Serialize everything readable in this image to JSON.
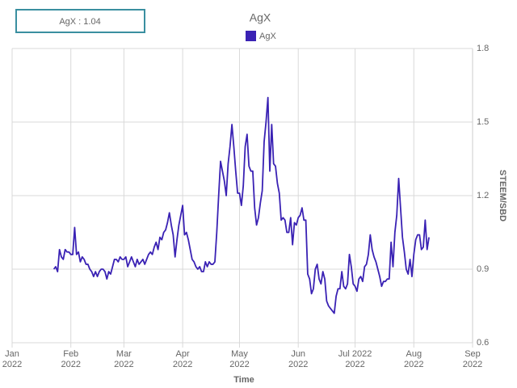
{
  "chart_data": {
    "type": "line",
    "title": "AgX",
    "tooltip": "AgX : 1.04",
    "xlabel": "Time",
    "ylabel": "STEEM/SBD",
    "xlim": [
      "2022-01-01",
      "2022-09-01"
    ],
    "xticks": [
      {
        "value": "2022-01-01",
        "label": [
          "Jan",
          "2022"
        ]
      },
      {
        "value": "2022-02-01",
        "label": [
          "Feb",
          "2022"
        ]
      },
      {
        "value": "2022-03-01",
        "label": [
          "Mar",
          "2022"
        ]
      },
      {
        "value": "2022-04-01",
        "label": [
          "Apr",
          "2022"
        ]
      },
      {
        "value": "2022-05-01",
        "label": [
          "May",
          "2022"
        ]
      },
      {
        "value": "2022-06-01",
        "label": [
          "Jun",
          "2022"
        ]
      },
      {
        "value": "2022-07-01",
        "label": [
          "Jul 2022",
          "2022"
        ]
      },
      {
        "value": "2022-08-01",
        "label": [
          "Aug",
          "2022"
        ]
      },
      {
        "value": "2022-09-01",
        "label": [
          "Sep",
          "2022"
        ]
      }
    ],
    "ylim": [
      0.6,
      1.8
    ],
    "yticks": [
      0.6,
      0.9,
      1.2,
      1.5,
      1.8
    ],
    "grid": true,
    "legend": "top",
    "x": [
      "2022-01-23",
      "2022-01-24",
      "2022-01-25",
      "2022-01-26",
      "2022-01-27",
      "2022-01-28",
      "2022-01-29",
      "2022-01-30",
      "2022-01-31",
      "2022-02-01",
      "2022-02-02",
      "2022-02-03",
      "2022-02-04",
      "2022-02-05",
      "2022-02-06",
      "2022-02-07",
      "2022-02-08",
      "2022-02-09",
      "2022-02-10",
      "2022-02-11",
      "2022-02-12",
      "2022-02-13",
      "2022-02-14",
      "2022-02-15",
      "2022-02-16",
      "2022-02-17",
      "2022-02-18",
      "2022-02-19",
      "2022-02-20",
      "2022-02-21",
      "2022-02-22",
      "2022-02-23",
      "2022-02-24",
      "2022-02-25",
      "2022-02-26",
      "2022-02-27",
      "2022-02-28",
      "2022-03-01",
      "2022-03-02",
      "2022-03-03",
      "2022-03-04",
      "2022-03-05",
      "2022-03-06",
      "2022-03-07",
      "2022-03-08",
      "2022-03-09",
      "2022-03-10",
      "2022-03-11",
      "2022-03-12",
      "2022-03-13",
      "2022-03-14",
      "2022-03-15",
      "2022-03-16",
      "2022-03-17",
      "2022-03-18",
      "2022-03-19",
      "2022-03-20",
      "2022-03-21",
      "2022-03-22",
      "2022-03-23",
      "2022-03-24",
      "2022-03-25",
      "2022-03-26",
      "2022-03-27",
      "2022-03-28",
      "2022-03-29",
      "2022-03-30",
      "2022-03-31",
      "2022-04-01",
      "2022-04-02",
      "2022-04-03",
      "2022-04-04",
      "2022-04-05",
      "2022-04-06",
      "2022-04-07",
      "2022-04-08",
      "2022-04-09",
      "2022-04-10",
      "2022-04-11",
      "2022-04-12",
      "2022-04-13",
      "2022-04-14",
      "2022-04-15",
      "2022-04-16",
      "2022-04-17",
      "2022-04-18",
      "2022-04-19",
      "2022-04-20",
      "2022-04-21",
      "2022-04-22",
      "2022-04-23",
      "2022-04-24",
      "2022-04-25",
      "2022-04-26",
      "2022-04-27",
      "2022-04-28",
      "2022-04-29",
      "2022-04-30",
      "2022-05-01",
      "2022-05-02",
      "2022-05-03",
      "2022-05-04",
      "2022-05-05",
      "2022-05-06",
      "2022-05-07",
      "2022-05-08",
      "2022-05-09",
      "2022-05-10",
      "2022-05-11",
      "2022-05-12",
      "2022-05-13",
      "2022-05-14",
      "2022-05-15",
      "2022-05-16",
      "2022-05-17",
      "2022-05-18",
      "2022-05-19",
      "2022-05-20",
      "2022-05-21",
      "2022-05-22",
      "2022-05-23",
      "2022-05-24",
      "2022-05-25",
      "2022-05-26",
      "2022-05-27",
      "2022-05-28",
      "2022-05-29",
      "2022-05-30",
      "2022-05-31",
      "2022-06-01",
      "2022-06-02",
      "2022-06-03",
      "2022-06-04",
      "2022-06-05",
      "2022-06-06",
      "2022-06-07",
      "2022-06-08",
      "2022-06-09",
      "2022-06-10",
      "2022-06-11",
      "2022-06-12",
      "2022-06-13",
      "2022-06-14",
      "2022-06-15",
      "2022-06-16",
      "2022-06-17",
      "2022-06-18",
      "2022-06-19",
      "2022-06-20",
      "2022-06-21",
      "2022-06-22",
      "2022-06-23",
      "2022-06-24",
      "2022-06-25",
      "2022-06-26",
      "2022-06-27",
      "2022-06-28",
      "2022-06-29",
      "2022-06-30",
      "2022-07-01",
      "2022-07-02",
      "2022-07-03",
      "2022-07-04",
      "2022-07-05",
      "2022-07-06",
      "2022-07-07",
      "2022-07-08",
      "2022-07-09",
      "2022-07-10",
      "2022-07-11",
      "2022-07-12",
      "2022-07-13",
      "2022-07-14",
      "2022-07-15",
      "2022-07-16",
      "2022-07-17",
      "2022-07-18",
      "2022-07-19",
      "2022-07-20",
      "2022-07-21",
      "2022-07-22",
      "2022-07-23",
      "2022-07-24",
      "2022-07-25",
      "2022-07-26",
      "2022-07-27",
      "2022-07-28",
      "2022-07-29",
      "2022-07-30",
      "2022-07-31",
      "2022-08-01",
      "2022-08-02",
      "2022-08-03",
      "2022-08-04",
      "2022-08-05",
      "2022-08-06",
      "2022-08-07",
      "2022-08-08",
      "2022-08-09"
    ],
    "series": [
      {
        "name": "AgX",
        "color": "#3a22b4",
        "values": [
          0.9,
          0.91,
          0.89,
          0.98,
          0.95,
          0.94,
          0.98,
          0.97,
          0.97,
          0.96,
          0.96,
          1.07,
          0.96,
          0.97,
          0.93,
          0.95,
          0.94,
          0.92,
          0.92,
          0.9,
          0.89,
          0.87,
          0.89,
          0.87,
          0.89,
          0.9,
          0.9,
          0.89,
          0.86,
          0.89,
          0.88,
          0.91,
          0.94,
          0.94,
          0.93,
          0.95,
          0.94,
          0.94,
          0.95,
          0.91,
          0.93,
          0.95,
          0.93,
          0.91,
          0.94,
          0.92,
          0.93,
          0.94,
          0.92,
          0.94,
          0.96,
          0.97,
          0.96,
          0.99,
          1.01,
          0.98,
          1.03,
          1.02,
          1.05,
          1.06,
          1.09,
          1.13,
          1.08,
          1.04,
          0.95,
          1.02,
          1.08,
          1.12,
          1.16,
          1.04,
          1.05,
          1.02,
          0.98,
          0.94,
          0.93,
          0.91,
          0.9,
          0.91,
          0.89,
          0.89,
          0.93,
          0.91,
          0.93,
          0.92,
          0.92,
          0.93,
          1.05,
          1.2,
          1.34,
          1.3,
          1.26,
          1.2,
          1.33,
          1.4,
          1.49,
          1.4,
          1.3,
          1.21,
          1.21,
          1.16,
          1.24,
          1.4,
          1.45,
          1.32,
          1.3,
          1.3,
          1.15,
          1.08,
          1.11,
          1.17,
          1.22,
          1.42,
          1.5,
          1.6,
          1.3,
          1.49,
          1.33,
          1.32,
          1.25,
          1.21,
          1.1,
          1.11,
          1.1,
          1.05,
          1.05,
          1.11,
          1.0,
          1.09,
          1.08,
          1.11,
          1.12,
          1.15,
          1.1,
          1.1,
          0.88,
          0.86,
          0.8,
          0.82,
          0.9,
          0.92,
          0.86,
          0.84,
          0.89,
          0.86,
          0.77,
          0.75,
          0.74,
          0.73,
          0.72,
          0.79,
          0.82,
          0.82,
          0.89,
          0.83,
          0.82,
          0.84,
          0.96,
          0.91,
          0.84,
          0.83,
          0.81,
          0.86,
          0.87,
          0.85,
          0.91,
          0.92,
          0.96,
          1.04,
          0.98,
          0.95,
          0.93,
          0.9,
          0.87,
          0.83,
          0.85,
          0.85,
          0.86,
          0.86,
          1.01,
          0.91,
          1.05,
          1.12,
          1.27,
          1.15,
          1.03,
          0.97,
          0.9,
          0.88,
          0.94,
          0.87,
          0.96,
          1.02,
          1.04,
          1.04,
          0.98,
          0.99,
          1.1,
          0.98,
          1.03
        ]
      }
    ]
  }
}
